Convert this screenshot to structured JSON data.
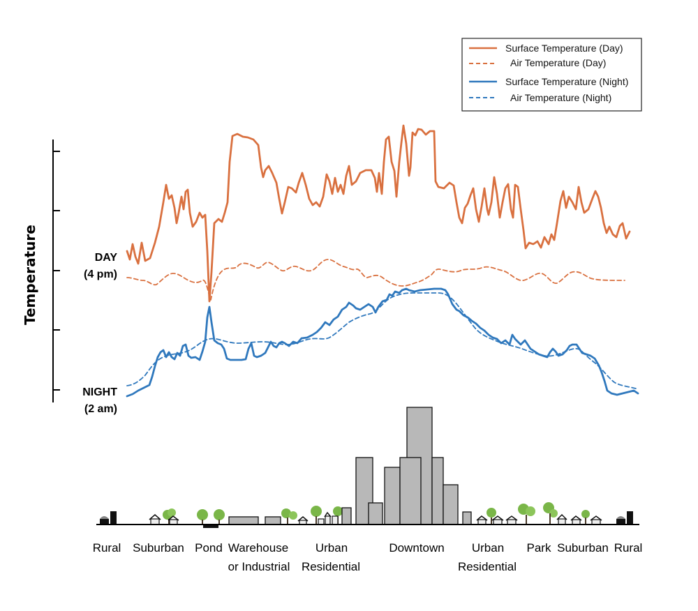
{
  "legend": {
    "items": [
      {
        "label": "Surface Temperature (Day)",
        "color": "#d9703f",
        "style": "solid"
      },
      {
        "label": "Air Temperature  (Day)",
        "color": "#d9703f",
        "style": "dashed"
      },
      {
        "label": "Surface Temperature (Night)",
        "color": "#2f78bd",
        "style": "solid"
      },
      {
        "label": "Air Temperature (Night)",
        "color": "#2f78bd",
        "style": "dashed"
      }
    ]
  },
  "axis": {
    "ylabel": "Temperature",
    "day_label_1": "DAY",
    "day_label_2": "(4 pm)",
    "night_label_1": "NIGHT",
    "night_label_2": "(2 am)"
  },
  "zones": [
    {
      "line1": "Rural",
      "line2": ""
    },
    {
      "line1": "Suburban",
      "line2": ""
    },
    {
      "line1": "Pond",
      "line2": ""
    },
    {
      "line1": "Warehouse",
      "line2": "or Industrial"
    },
    {
      "line1": "Urban",
      "line2": "Residential"
    },
    {
      "line1": "Downtown",
      "line2": ""
    },
    {
      "line1": "Urban",
      "line2": "Residential"
    },
    {
      "line1": "Park",
      "line2": ""
    },
    {
      "line1": "Suburban",
      "line2": ""
    },
    {
      "line1": "Rural",
      "line2": ""
    }
  ],
  "colors": {
    "day": "#d9703f",
    "night": "#2f78bd",
    "building": "#b8b8b8",
    "tree": "#7ab648"
  }
}
